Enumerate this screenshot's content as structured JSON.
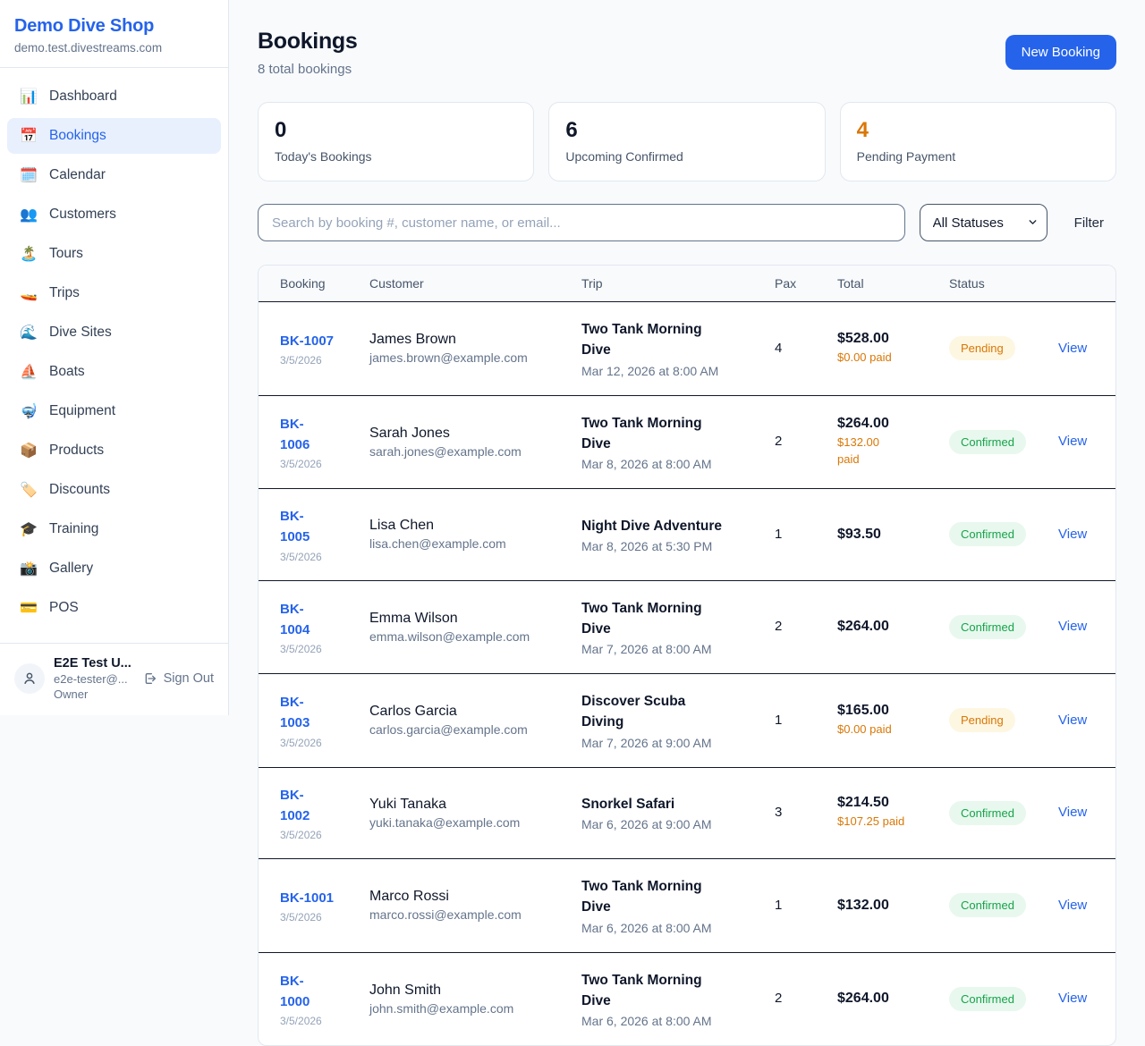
{
  "colors": {
    "accent_blue": "#2563eb",
    "pending_orange": "#d97706",
    "confirmed_green": "#16a34a",
    "page_background": "#f8fafc"
  },
  "sidebar": {
    "brand": {
      "name": "Demo Dive Shop",
      "domain": "demo.test.divestreams.com"
    },
    "nav": [
      {
        "label": "Dashboard",
        "icon": "📊",
        "active": false
      },
      {
        "label": "Bookings",
        "icon": "📅",
        "active": true
      },
      {
        "label": "Calendar",
        "icon": "🗓️",
        "active": false
      },
      {
        "label": "Customers",
        "icon": "👥",
        "active": false
      },
      {
        "label": "Tours",
        "icon": "🏝️",
        "active": false
      },
      {
        "label": "Trips",
        "icon": "🚤",
        "active": false
      },
      {
        "label": "Dive Sites",
        "icon": "🌊",
        "active": false
      },
      {
        "label": "Boats",
        "icon": "⛵",
        "active": false
      },
      {
        "label": "Equipment",
        "icon": "🤿",
        "active": false
      },
      {
        "label": "Products",
        "icon": "📦",
        "active": false
      },
      {
        "label": "Discounts",
        "icon": "🏷️",
        "active": false
      },
      {
        "label": "Training",
        "icon": "🎓",
        "active": false
      },
      {
        "label": "Gallery",
        "icon": "📸",
        "active": false
      },
      {
        "label": "POS",
        "icon": "💳",
        "active": false
      }
    ],
    "user": {
      "name": "E2E Test U...",
      "email": "e2e-tester@...",
      "role": "Owner",
      "sign_out_label": "Sign Out"
    }
  },
  "header": {
    "title": "Bookings",
    "subtitle": "8 total bookings",
    "new_booking_label": "New Booking"
  },
  "stats": [
    {
      "value": "0",
      "label": "Today's Bookings",
      "value_color": "#0f172a"
    },
    {
      "value": "6",
      "label": "Upcoming Confirmed",
      "value_color": "#0f172a"
    },
    {
      "value": "4",
      "label": "Pending Payment",
      "value_color": "#d97706"
    }
  ],
  "filters": {
    "search_placeholder": "Search by booking #, customer name, or email...",
    "status_selected": "All Statuses",
    "filter_label": "Filter"
  },
  "table": {
    "columns": [
      "Booking",
      "Customer",
      "Trip",
      "Pax",
      "Total",
      "Status"
    ],
    "view_label": "View",
    "rows": [
      {
        "booking_id": "BK-1007",
        "booking_date": "3/5/2026",
        "customer_name": "James Brown",
        "customer_email": "james.brown@example.com",
        "trip_name": "Two Tank Morning Dive",
        "trip_datetime": "Mar 12, 2026 at 8:00 AM",
        "pax": "4",
        "total": "$528.00",
        "paid": "$0.00 paid",
        "status": "Pending"
      },
      {
        "booking_id": "BK-\n1006",
        "booking_date": "3/5/2026",
        "customer_name": "Sarah Jones",
        "customer_email": "sarah.jones@example.com",
        "trip_name": "Two Tank Morning Dive",
        "trip_datetime": "Mar 8, 2026 at 8:00 AM",
        "pax": "2",
        "total": "$264.00",
        "paid": "$132.00\npaid",
        "status": "Confirmed"
      },
      {
        "booking_id": "BK-\n1005",
        "booking_date": "3/5/2026",
        "customer_name": "Lisa Chen",
        "customer_email": "lisa.chen@example.com",
        "trip_name": "Night Dive Adventure",
        "trip_datetime": "Mar 8, 2026 at 5:30 PM",
        "pax": "1",
        "total": "$93.50",
        "paid": "",
        "status": "Confirmed"
      },
      {
        "booking_id": "BK-\n1004",
        "booking_date": "3/5/2026",
        "customer_name": "Emma Wilson",
        "customer_email": "emma.wilson@example.com",
        "trip_name": "Two Tank Morning Dive",
        "trip_datetime": "Mar 7, 2026 at 8:00 AM",
        "pax": "2",
        "total": "$264.00",
        "paid": "",
        "status": "Confirmed"
      },
      {
        "booking_id": "BK-\n1003",
        "booking_date": "3/5/2026",
        "customer_name": "Carlos Garcia",
        "customer_email": "carlos.garcia@example.com",
        "trip_name": "Discover Scuba Diving",
        "trip_datetime": "Mar 7, 2026 at 9:00 AM",
        "pax": "1",
        "total": "$165.00",
        "paid": "$0.00 paid",
        "status": "Pending"
      },
      {
        "booking_id": "BK-\n1002",
        "booking_date": "3/5/2026",
        "customer_name": "Yuki Tanaka",
        "customer_email": "yuki.tanaka@example.com",
        "trip_name": "Snorkel Safari",
        "trip_datetime": "Mar 6, 2026 at 9:00 AM",
        "pax": "3",
        "total": "$214.50",
        "paid": "$107.25 paid",
        "status": "Confirmed"
      },
      {
        "booking_id": "BK-1001",
        "booking_date": "3/5/2026",
        "customer_name": "Marco Rossi",
        "customer_email": "marco.rossi@example.com",
        "trip_name": "Two Tank Morning Dive",
        "trip_datetime": "Mar 6, 2026 at 8:00 AM",
        "pax": "1",
        "total": "$132.00",
        "paid": "",
        "status": "Confirmed"
      },
      {
        "booking_id": "BK-\n1000",
        "booking_date": "3/5/2026",
        "customer_name": "John Smith",
        "customer_email": "john.smith@example.com",
        "trip_name": "Two Tank Morning Dive",
        "trip_datetime": "Mar 6, 2026 at 8:00 AM",
        "pax": "2",
        "total": "$264.00",
        "paid": "",
        "status": "Confirmed"
      }
    ]
  }
}
